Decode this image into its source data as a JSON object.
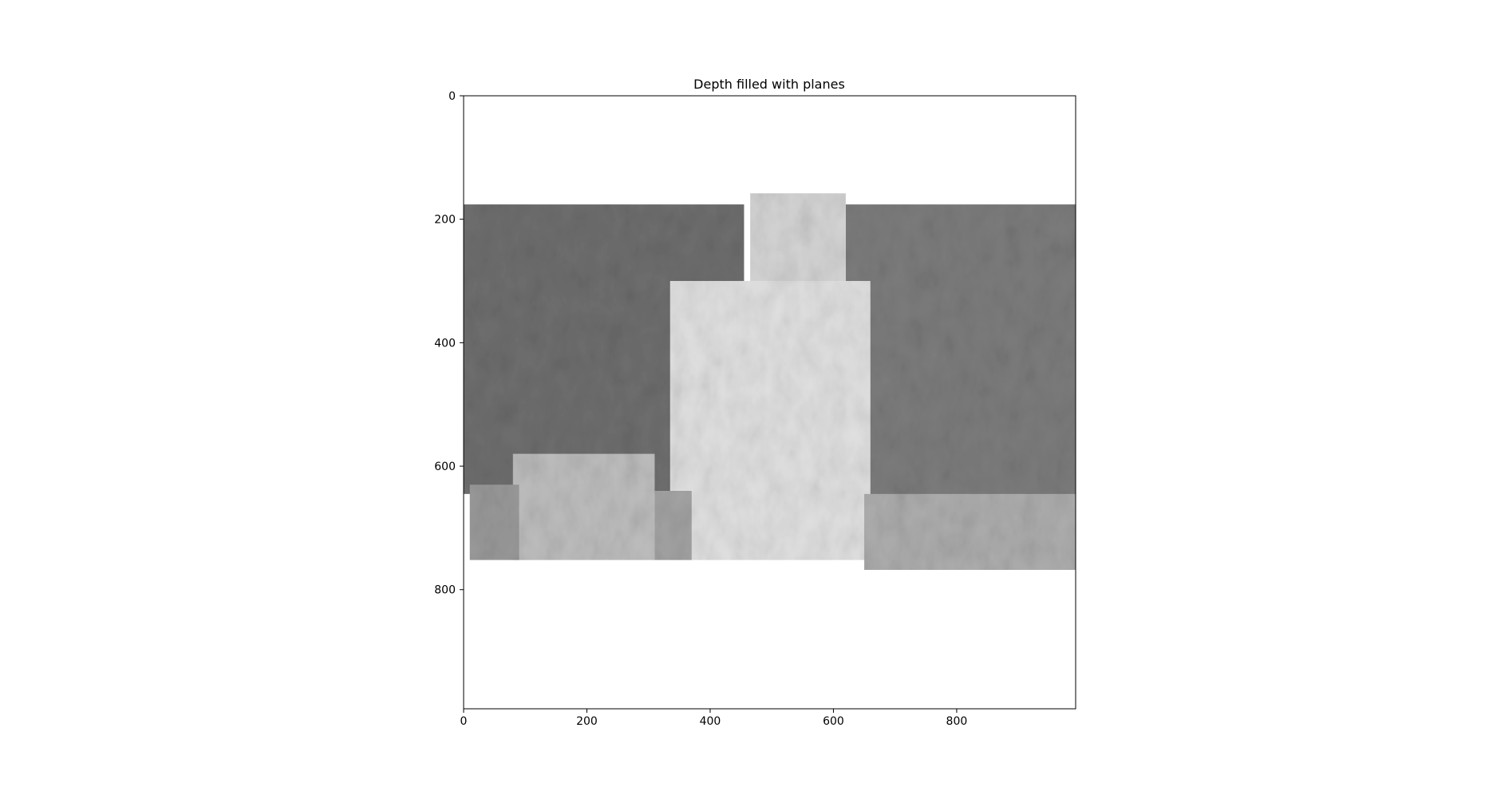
{
  "chart_data": {
    "type": "heatmap",
    "title": "Depth filled with planes",
    "xlabel": "",
    "ylabel": "",
    "xlim": [
      0,
      993
    ],
    "ylim": [
      993,
      0
    ],
    "x_ticks": [
      0,
      200,
      400,
      600,
      800
    ],
    "y_ticks": [
      0,
      200,
      400,
      600,
      800
    ],
    "grid": false,
    "colormap": "gray",
    "regions": [
      {
        "name": "",
        "x": [
          0,
          455
        ],
        "y": [
          176,
          645
        ],
        "gray": "#6e6e6e"
      },
      {
        "name": "",
        "x": [
          620,
          993
        ],
        "y": [
          176,
          650
        ],
        "gray": "#7c7c7c"
      },
      {
        "name": "",
        "x": [
          465,
          620
        ],
        "y": [
          158,
          330
        ],
        "gray": "#d4d4d4"
      },
      {
        "name": "",
        "x": [
          335,
          660
        ],
        "y": [
          300,
          752
        ],
        "gray": "#e0e0e0"
      },
      {
        "name": "",
        "x": [
          80,
          310
        ],
        "y": [
          580,
          752
        ],
        "gray": "#bdbdbd"
      },
      {
        "name": "",
        "x": [
          10,
          90
        ],
        "y": [
          630,
          752
        ],
        "gray": "#999999"
      },
      {
        "name": "",
        "x": [
          310,
          370
        ],
        "y": [
          640,
          752
        ],
        "gray": "#a3a3a3"
      },
      {
        "name": "",
        "x": [
          650,
          993
        ],
        "y": [
          645,
          768
        ],
        "gray": "#adadad"
      }
    ]
  }
}
